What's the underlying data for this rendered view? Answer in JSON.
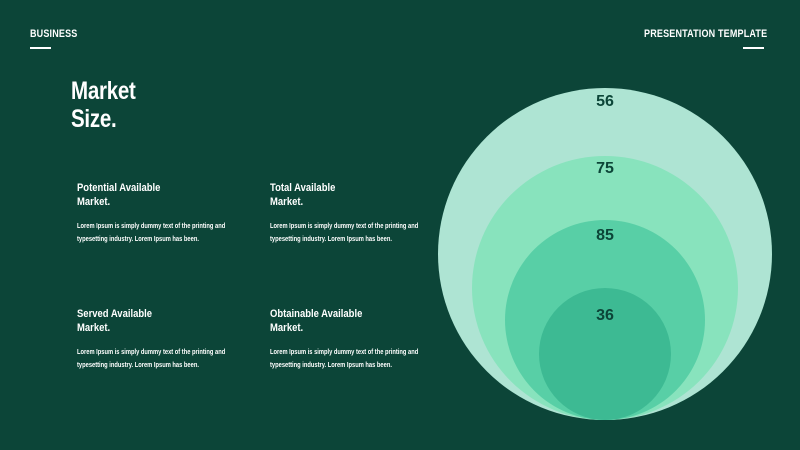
{
  "header": {
    "left_label": "BUSINESS",
    "right_label": "PRESENTATION TEMPLATE"
  },
  "title_line1": "Market",
  "title_line2": "Size.",
  "blocks": [
    {
      "title_line1": "Potential  Available",
      "title_line2": "Market.",
      "body_line1": "Lorem Ipsum is simply dummy text of the printing and",
      "body_line2": "typesetting industry. Lorem Ipsum has been."
    },
    {
      "title_line1": "Total  Available",
      "title_line2": "Market.",
      "body_line1": "Lorem Ipsum is simply dummy text of the printing and",
      "body_line2": "typesetting industry. Lorem Ipsum has been."
    },
    {
      "title_line1": "Served  Available",
      "title_line2": "Market.",
      "body_line1": "Lorem Ipsum is simply dummy text of the printing and",
      "body_line2": "typesetting industry. Lorem Ipsum has been."
    },
    {
      "title_line1": "Obtainable  Available",
      "title_line2": "Market.",
      "body_line1": "Lorem Ipsum is simply dummy text of the printing and",
      "body_line2": "typesetting industry. Lorem Ipsum has been."
    }
  ],
  "circles": [
    {
      "value": "56",
      "color": "#aee4d3"
    },
    {
      "value": "75",
      "color": "#88e3bd"
    },
    {
      "value": "85",
      "color": "#58cfa6"
    },
    {
      "value": "36",
      "color": "#3dba93"
    }
  ],
  "colors": {
    "background": "#0c4538",
    "text": "#ffffff",
    "value_text": "#0c4538"
  }
}
